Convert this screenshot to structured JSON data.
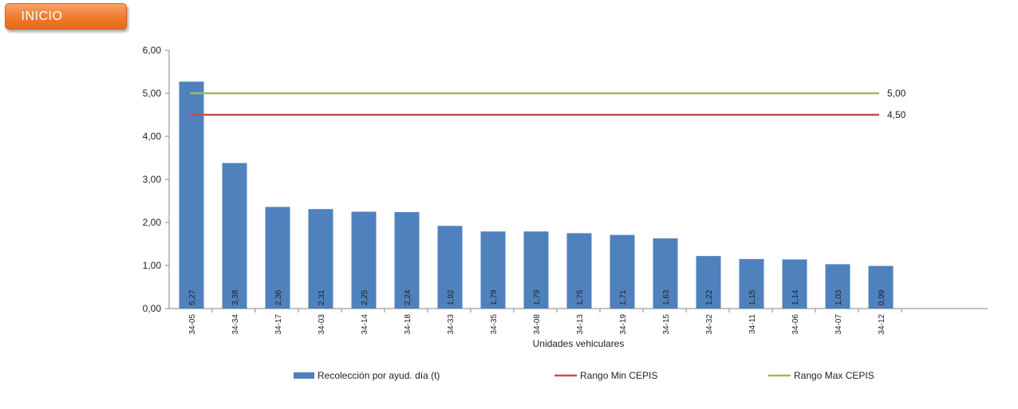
{
  "nav": {
    "inicio_label": "INICIO"
  },
  "colors": {
    "bar": "#4f81bd",
    "min_line": "#c0504d",
    "max_line": "#9bbb59",
    "button": "#f07a2c"
  },
  "chart_data": {
    "type": "bar",
    "title": "",
    "xlabel": "Unidades vehiculares",
    "ylabel": "",
    "ylim": [
      0,
      6
    ],
    "yticks": [
      "0,00",
      "1,00",
      "2,00",
      "3,00",
      "4,00",
      "5,00",
      "6,00"
    ],
    "categories": [
      "34-05",
      "34-34",
      "34-17",
      "34-03",
      "34-14",
      "34-18",
      "34-33",
      "34-35",
      "34-08",
      "34-13",
      "34-19",
      "34-15",
      "34-32",
      "34-11",
      "34-06",
      "34-07",
      "34-12"
    ],
    "series": [
      {
        "name": "Recolección por ayud. día (t)",
        "type": "bar",
        "values": [
          5.27,
          3.38,
          2.36,
          2.31,
          2.25,
          2.24,
          1.92,
          1.79,
          1.79,
          1.75,
          1.71,
          1.63,
          1.22,
          1.15,
          1.14,
          1.03,
          0.99
        ],
        "labels": [
          "5,27",
          "3,38",
          "2,36",
          "2,31",
          "2,25",
          "2,24",
          "1,92",
          "1,79",
          "1,79",
          "1,75",
          "1,71",
          "1,63",
          "1,22",
          "1,15",
          "1,14",
          "1,03",
          "0,99"
        ]
      },
      {
        "name": "Rango Min CEPIS",
        "type": "line",
        "value": 4.5,
        "label": "4,50"
      },
      {
        "name": "Rango Max CEPIS",
        "type": "line",
        "value": 5.0,
        "label": "5,00"
      }
    ],
    "grid": false,
    "legend_position": "bottom"
  }
}
